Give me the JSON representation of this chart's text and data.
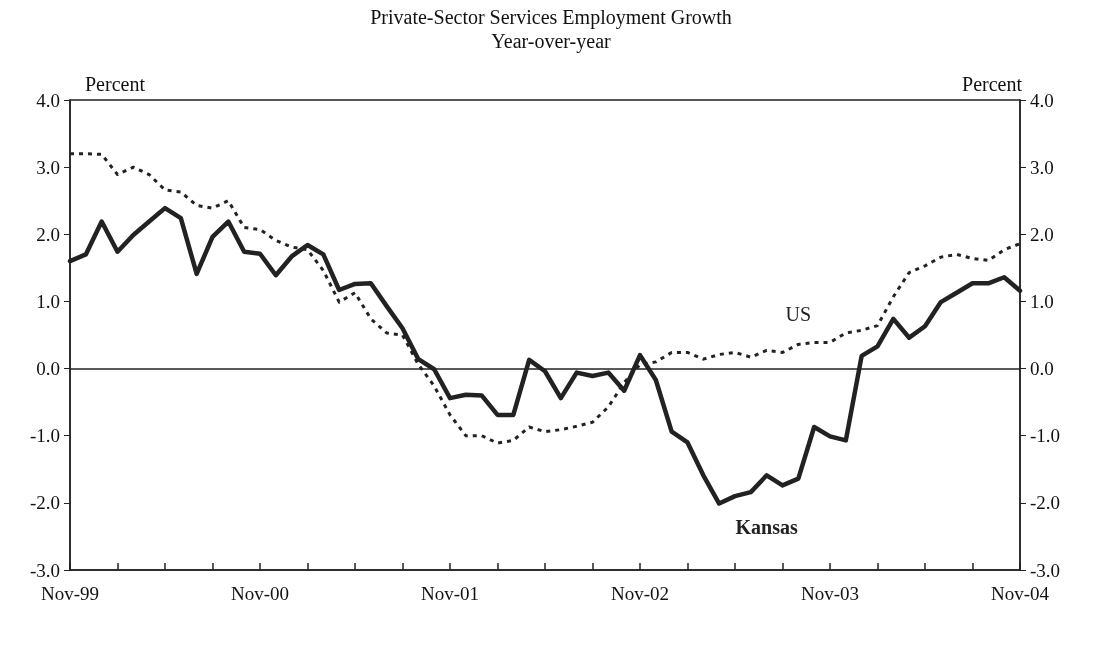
{
  "chart_data": {
    "type": "line",
    "title": "Private-Sector Services Employment Growth",
    "subtitle": "Year-over-year",
    "ylabel": "Percent",
    "y2label": "Percent",
    "categories": [
      "Nov-99",
      null,
      null,
      null,
      null,
      null,
      null,
      null,
      null,
      null,
      null,
      null,
      "Nov-00",
      null,
      null,
      null,
      null,
      null,
      null,
      null,
      null,
      null,
      null,
      null,
      "Nov-01",
      null,
      null,
      null,
      null,
      null,
      null,
      null,
      null,
      null,
      null,
      null,
      "Nov-02",
      null,
      null,
      null,
      null,
      null,
      null,
      null,
      null,
      null,
      null,
      null,
      "Nov-03",
      null,
      null,
      null,
      null,
      null,
      null,
      null,
      null,
      null,
      null,
      null,
      "Nov-04"
    ],
    "series": [
      {
        "name": "Kansas",
        "color": "#222222",
        "line_style": "solid",
        "values": [
          1.6,
          1.7,
          2.19,
          1.74,
          1.99,
          2.19,
          2.39,
          2.24,
          1.41,
          1.96,
          2.19,
          1.74,
          1.71,
          1.39,
          1.67,
          1.84,
          1.7,
          1.17,
          1.26,
          1.27,
          0.93,
          0.6,
          0.14,
          -0.01,
          -0.44,
          -0.39,
          -0.4,
          -0.69,
          -0.69,
          0.13,
          -0.04,
          -0.44,
          -0.06,
          -0.11,
          -0.06,
          -0.33,
          0.2,
          -0.17,
          -0.94,
          -1.1,
          -1.59,
          -2.01,
          -1.9,
          -1.84,
          -1.59,
          -1.74,
          -1.64,
          -0.87,
          -1.01,
          -1.07,
          0.19,
          0.33,
          0.74,
          0.46,
          0.63,
          0.99,
          1.13,
          1.27,
          1.27,
          1.36,
          1.16
        ]
      },
      {
        "name": "US",
        "color": "#222222",
        "line_style": "dashed",
        "values": [
          3.2,
          3.2,
          3.19,
          2.89,
          3.0,
          2.89,
          2.66,
          2.63,
          2.43,
          2.39,
          2.5,
          2.1,
          2.07,
          1.91,
          1.81,
          1.77,
          1.46,
          0.99,
          1.13,
          0.74,
          0.53,
          0.5,
          0.06,
          -0.26,
          -0.69,
          -1.0,
          -1.0,
          -1.11,
          -1.07,
          -0.87,
          -0.94,
          -0.91,
          -0.86,
          -0.8,
          -0.57,
          -0.21,
          0.06,
          0.1,
          0.24,
          0.24,
          0.14,
          0.21,
          0.24,
          0.17,
          0.27,
          0.24,
          0.36,
          0.39,
          0.39,
          0.53,
          0.57,
          0.64,
          1.07,
          1.43,
          1.53,
          1.66,
          1.7,
          1.64,
          1.61,
          1.77,
          1.86
        ]
      }
    ],
    "ylim": [
      -3,
      4
    ],
    "yticks": [
      {
        "value": -3,
        "label": "-3.0"
      },
      {
        "value": -2,
        "label": "-2.0"
      },
      {
        "value": -1,
        "label": "-1.0"
      },
      {
        "value": 0,
        "label": "0.0"
      },
      {
        "value": 1,
        "label": "1.0"
      },
      {
        "value": 2,
        "label": "2.0"
      },
      {
        "value": 3,
        "label": "3.0"
      },
      {
        "value": 4,
        "label": "4.0"
      }
    ],
    "y2lim": [
      -3,
      4
    ],
    "y2ticks": [
      {
        "value": -3,
        "label": "-3.0"
      },
      {
        "value": -2,
        "label": "-2.0"
      },
      {
        "value": -1,
        "label": "-1.0"
      },
      {
        "value": 0,
        "label": "0.0"
      },
      {
        "value": 1,
        "label": "1.0"
      },
      {
        "value": 2,
        "label": "2.0"
      },
      {
        "value": 3,
        "label": "3.0"
      },
      {
        "value": 4,
        "label": "4.0"
      }
    ],
    "ref_lines": [
      {
        "axis": "y",
        "value": 0,
        "color": "#222222",
        "line_style": "solid"
      }
    ],
    "grid": false,
    "legend": false,
    "marker": "none"
  }
}
